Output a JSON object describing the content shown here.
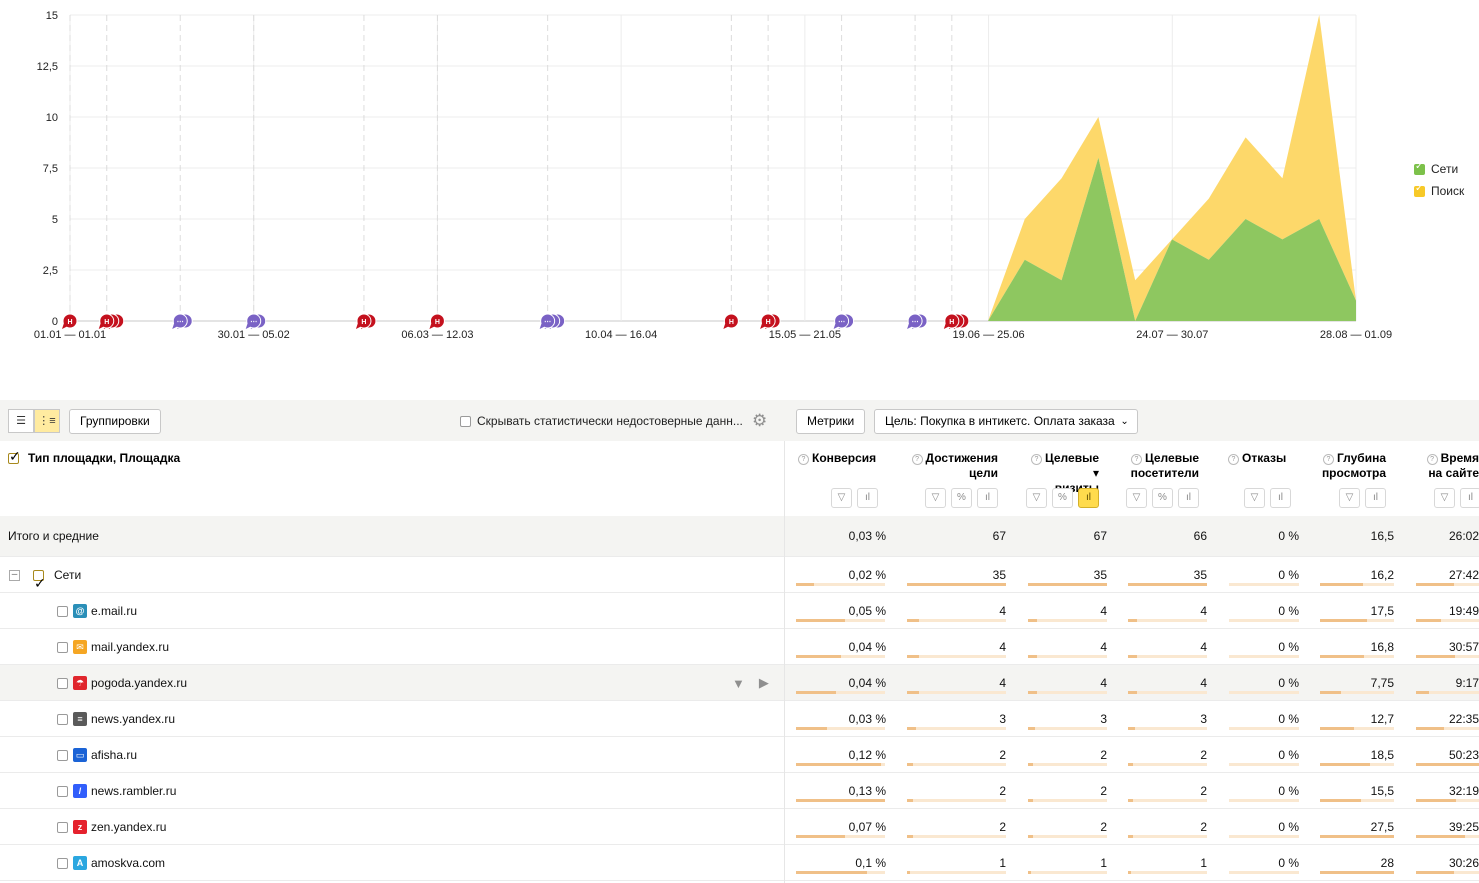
{
  "chart_data": {
    "type": "area",
    "stacked": true,
    "x_tick_labels": [
      "01.01 — 01.01",
      "30.01 — 05.02",
      "06.03 — 12.03",
      "10.04 — 16.04",
      "15.05 — 21.05",
      "19.06 — 25.06",
      "24.07 — 30.07",
      "28.08 — 01.09"
    ],
    "y_tick_labels": [
      "0",
      "2,5",
      "5",
      "7,5",
      "10",
      "12,5",
      "15"
    ],
    "ylim": [
      0,
      15
    ],
    "grid": true,
    "legend_position": "right",
    "x_index_range": [
      0,
      35
    ],
    "series": [
      {
        "name": "Сети",
        "color": "#8ec760",
        "points": [
          [
            26,
            0
          ],
          [
            27,
            3
          ],
          [
            28,
            2
          ],
          [
            29,
            8
          ],
          [
            30,
            0
          ],
          [
            31,
            4
          ],
          [
            32,
            3
          ],
          [
            33,
            5
          ],
          [
            34,
            4
          ],
          [
            35,
            5
          ],
          [
            36,
            1
          ]
        ]
      },
      {
        "name": "Поиск",
        "color": "#fdd86a",
        "points": [
          [
            26,
            0
          ],
          [
            27,
            2
          ],
          [
            28,
            5
          ],
          [
            29,
            2
          ],
          [
            30,
            2
          ],
          [
            31,
            0
          ],
          [
            32,
            3
          ],
          [
            33,
            4
          ],
          [
            34,
            3
          ],
          [
            35,
            10
          ],
          [
            36,
            0
          ]
        ]
      }
    ],
    "annotation_markers": [
      {
        "label": "Н",
        "color": "#c4111e",
        "index": 0,
        "count": 1
      },
      {
        "label": "Н",
        "color": "#c4111e",
        "index": 1,
        "count": 3
      },
      {
        "label": "⋯",
        "color": "#7a62c5",
        "index": 3,
        "count": 2
      },
      {
        "label": "⋯",
        "color": "#7a62c5",
        "index": 5,
        "count": 2
      },
      {
        "label": "Н",
        "color": "#c4111e",
        "index": 8,
        "count": 2
      },
      {
        "label": "Н",
        "color": "#c4111e",
        "index": 10,
        "count": 1
      },
      {
        "label": "⋯",
        "color": "#7a62c5",
        "index": 13,
        "count": 3
      },
      {
        "label": "Н",
        "color": "#c4111e",
        "index": 18,
        "count": 1
      },
      {
        "label": "Н",
        "color": "#c4111e",
        "index": 19,
        "count": 2
      },
      {
        "label": "⋯",
        "color": "#7a62c5",
        "index": 21,
        "count": 2
      },
      {
        "label": "⋯",
        "color": "#7a62c5",
        "index": 23,
        "count": 2
      },
      {
        "label": "Н",
        "color": "#c4111e",
        "index": 24,
        "count": 3
      }
    ]
  },
  "toolbar": {
    "groupings_label": "Группировки",
    "hide_stat_label": "Скрывать статистически недостоверные данн...",
    "metrics_label": "Метрики",
    "goal_label": "Цель: Покупка в интикетс. Оплата заказа"
  },
  "table": {
    "dimension_header": "Тип площадки, Площадка",
    "columns": [
      {
        "label1": "Конверсия",
        "label2": ""
      },
      {
        "label1": "Достижения",
        "label2": "цели"
      },
      {
        "label1": "Целевые ▾",
        "label2": "визиты"
      },
      {
        "label1": "Целевые",
        "label2": "посетители"
      },
      {
        "label1": "Отказы",
        "label2": ""
      },
      {
        "label1": "Глубина",
        "label2": "просмотра"
      },
      {
        "label1": "Время",
        "label2": "на сайте"
      }
    ],
    "total": {
      "label": "Итого и средние",
      "values": [
        "0,03 %",
        "67",
        "67",
        "66",
        "0 %",
        "16,5",
        "26:02"
      ]
    },
    "group": {
      "label": "Сети",
      "values": [
        "0,02 %",
        "35",
        "35",
        "35",
        "0 %",
        "16,2",
        "27:42"
      ],
      "bars": [
        0.2,
        1,
        1,
        1,
        0,
        0.58,
        0.6
      ]
    },
    "rows": [
      {
        "label": "e.mail.ru",
        "icon": "mailru-icon",
        "icon_color": "#2a8fb8",
        "icon_glyph": "@",
        "values": [
          "0,05 %",
          "4",
          "4",
          "4",
          "0 %",
          "17,5",
          "19:49"
        ],
        "bars": [
          0.55,
          0.12,
          0.12,
          0.12,
          0,
          0.64,
          0.4
        ]
      },
      {
        "label": "mail.yandex.ru",
        "icon": "envelope-icon",
        "icon_color": "#f5a623",
        "icon_glyph": "✉",
        "values": [
          "0,04 %",
          "4",
          "4",
          "4",
          "0 %",
          "16,8",
          "30:57"
        ],
        "bars": [
          0.5,
          0.12,
          0.12,
          0.12,
          0,
          0.6,
          0.62
        ]
      },
      {
        "label": "pogoda.yandex.ru",
        "icon": "umbrella-icon",
        "icon_color": "#e0262d",
        "icon_glyph": "☂",
        "values": [
          "0,04 %",
          "4",
          "4",
          "4",
          "0 %",
          "7,75",
          "9:17"
        ],
        "bars": [
          0.45,
          0.12,
          0.12,
          0.12,
          0,
          0.28,
          0.2
        ]
      },
      {
        "label": "news.yandex.ru",
        "icon": "newspaper-icon",
        "icon_color": "#5a5a5a",
        "icon_glyph": "≡",
        "values": [
          "0,03 %",
          "3",
          "3",
          "3",
          "0 %",
          "12,7",
          "22:35"
        ],
        "bars": [
          0.35,
          0.09,
          0.09,
          0.09,
          0,
          0.46,
          0.45
        ]
      },
      {
        "label": "afisha.ru",
        "icon": "afisha-icon",
        "icon_color": "#1b63d6",
        "icon_glyph": "▭",
        "values": [
          "0,12 %",
          "2",
          "2",
          "2",
          "0 %",
          "18,5",
          "50:23"
        ],
        "bars": [
          0.95,
          0.06,
          0.06,
          0.06,
          0,
          0.67,
          1
        ]
      },
      {
        "label": "news.rambler.ru",
        "icon": "rambler-icon",
        "icon_color": "#315efb",
        "icon_glyph": "/",
        "values": [
          "0,13 %",
          "2",
          "2",
          "2",
          "0 %",
          "15,5",
          "32:19"
        ],
        "bars": [
          1,
          0.06,
          0.06,
          0.06,
          0,
          0.56,
          0.64
        ]
      },
      {
        "label": "zen.yandex.ru",
        "icon": "zen-icon",
        "icon_color": "#e5222d",
        "icon_glyph": "z",
        "values": [
          "0,07 %",
          "2",
          "2",
          "2",
          "0 %",
          "27,5",
          "39:25"
        ],
        "bars": [
          0.55,
          0.06,
          0.06,
          0.06,
          0,
          1,
          0.78
        ]
      },
      {
        "label": "amoskva.com",
        "icon": "amoskva-icon",
        "icon_color": "#2ba7e0",
        "icon_glyph": "A",
        "values": [
          "0,1 %",
          "1",
          "1",
          "1",
          "0 %",
          "28",
          "30:26"
        ],
        "bars": [
          0.8,
          0.03,
          0.03,
          0.03,
          0,
          1,
          0.6
        ]
      }
    ]
  }
}
